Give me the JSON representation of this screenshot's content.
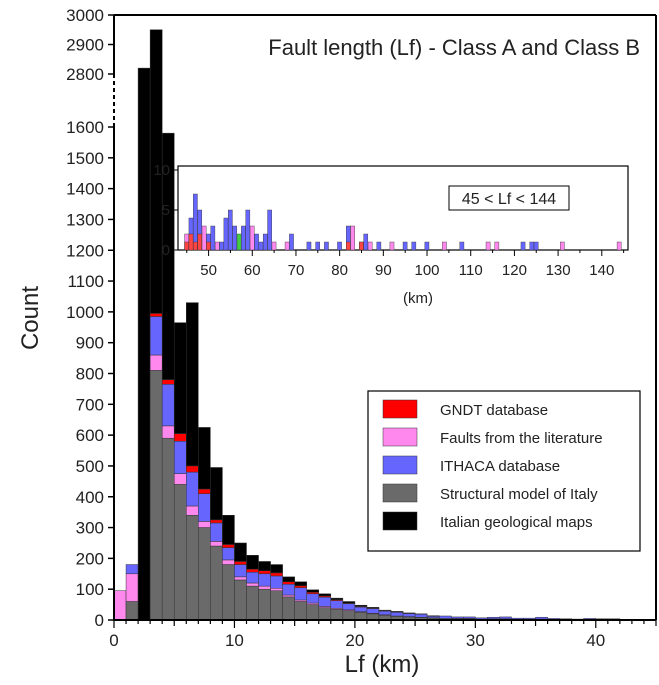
{
  "chart_data": [
    {
      "type": "bar",
      "title": "Fault length (Lf) - Class A and Class B",
      "xlabel": "Lf (km)",
      "ylabel": "Count",
      "bin_width_km": 1,
      "xlim": [
        0,
        45
      ],
      "x_ticks": [
        0,
        10,
        20,
        30,
        40
      ],
      "y_ticks_lower": [
        0,
        100,
        200,
        300,
        400,
        500,
        600,
        700,
        800,
        900,
        1000,
        1100,
        1200,
        1300,
        1400,
        1500,
        1600
      ],
      "y_ticks_upper": [
        2800,
        2900,
        3000
      ],
      "y_axis_break": [
        1650,
        2750
      ],
      "stacked": true,
      "legend_position": "lower-right, inside plot area",
      "series": [
        {
          "name": "Structural model of Italy",
          "color": "#6a6a6a",
          "values": [
            0,
            60,
            0,
            810,
            590,
            440,
            340,
            300,
            240,
            180,
            130,
            110,
            100,
            95,
            75,
            60,
            50,
            40,
            35,
            30,
            25,
            20,
            15,
            12,
            10,
            8,
            6,
            5,
            4,
            4,
            3,
            3,
            3,
            2,
            2,
            2,
            1,
            1,
            1,
            1,
            1,
            1,
            0,
            0,
            0
          ]
        },
        {
          "name": "Faults from the literature",
          "color": "#ff88ee",
          "values": [
            95,
            90,
            0,
            50,
            40,
            35,
            30,
            20,
            15,
            15,
            10,
            10,
            10,
            8,
            6,
            5,
            5,
            4,
            3,
            3,
            2,
            2,
            2,
            1,
            1,
            1,
            1,
            0,
            1,
            1,
            0,
            1,
            1,
            0,
            0,
            1,
            0,
            0,
            0,
            1,
            0,
            0,
            0,
            0,
            0
          ]
        },
        {
          "name": "ITHACA database",
          "color": "#6666ff",
          "values": [
            0,
            30,
            0,
            125,
            135,
            105,
            110,
            90,
            60,
            40,
            40,
            35,
            40,
            40,
            35,
            40,
            30,
            30,
            25,
            20,
            15,
            15,
            12,
            12,
            10,
            10,
            5,
            8,
            5,
            5,
            4,
            5,
            6,
            4,
            4,
            6,
            4,
            3,
            2,
            3,
            3,
            3,
            0,
            0,
            0
          ]
        },
        {
          "name": "GNDT database",
          "color": "#ff0000",
          "values": [
            0,
            0,
            0,
            10,
            15,
            25,
            20,
            15,
            10,
            10,
            10,
            10,
            10,
            10,
            8,
            6,
            5,
            4,
            3,
            2,
            2,
            1,
            1,
            1,
            1,
            0,
            1,
            0,
            0,
            0,
            0,
            0,
            0,
            0,
            0,
            0,
            0,
            0,
            0,
            0,
            0,
            0,
            0,
            0,
            0
          ]
        },
        {
          "name": "Italian geological maps",
          "color": "#000000",
          "values": [
            0,
            0,
            2820,
            1955,
            800,
            360,
            530,
            200,
            170,
            95,
            60,
            45,
            30,
            27,
            16,
            13,
            8,
            7,
            5,
            5,
            4,
            3,
            2,
            2,
            1,
            1,
            1,
            0,
            0,
            0,
            0,
            0,
            0,
            0,
            0,
            0,
            0,
            0,
            0,
            0,
            0,
            0,
            0,
            0,
            0
          ]
        }
      ]
    },
    {
      "type": "bar",
      "title": "",
      "annotation": "45 < Lf < 144",
      "xlabel": "(km)",
      "xlim": [
        43,
        146
      ],
      "ylim": [
        0,
        10
      ],
      "x_ticks": [
        50,
        60,
        70,
        80,
        90,
        100,
        110,
        120,
        130,
        140
      ],
      "y_ticks": [
        0,
        5,
        10
      ],
      "bars": [
        {
          "x": 45,
          "total": 2,
          "color": "#ff88ee"
        },
        {
          "x": 46,
          "total": 4,
          "color": "#6666ff"
        },
        {
          "x": 47,
          "total": 7,
          "color": "#6666ff"
        },
        {
          "x": 48,
          "total": 5,
          "color": "#6666ff"
        },
        {
          "x": 49,
          "total": 3,
          "color": "#ff88ee"
        },
        {
          "x": 50,
          "total": 2,
          "color": "#6666ff"
        },
        {
          "x": 51,
          "total": 3,
          "color": "#6666ff"
        },
        {
          "x": 52,
          "total": 1,
          "color": "#ff88ee"
        },
        {
          "x": 53,
          "total": 1,
          "color": "#6666ff"
        },
        {
          "x": 54,
          "total": 4,
          "color": "#6666ff"
        },
        {
          "x": 55,
          "total": 5,
          "color": "#6666ff"
        },
        {
          "x": 56,
          "total": 3,
          "color": "#6666ff"
        },
        {
          "x": 57,
          "total": 2,
          "color": "#44cc44"
        },
        {
          "x": 58,
          "total": 3,
          "color": "#6666ff"
        },
        {
          "x": 59,
          "total": 5,
          "color": "#6666ff"
        },
        {
          "x": 60,
          "total": 3,
          "color": "#ff88ee"
        },
        {
          "x": 61,
          "total": 2,
          "color": "#6666ff"
        },
        {
          "x": 62,
          "total": 1,
          "color": "#6666ff"
        },
        {
          "x": 63,
          "total": 2,
          "color": "#6666ff"
        },
        {
          "x": 64,
          "total": 5,
          "color": "#6666ff"
        },
        {
          "x": 65,
          "total": 1,
          "color": "#ff88ee"
        },
        {
          "x": 68,
          "total": 1,
          "color": "#ff88ee"
        },
        {
          "x": 69,
          "total": 2,
          "color": "#6666ff"
        },
        {
          "x": 73,
          "total": 1,
          "color": "#6666ff"
        },
        {
          "x": 75,
          "total": 1,
          "color": "#6666ff"
        },
        {
          "x": 77,
          "total": 1,
          "color": "#6666ff"
        },
        {
          "x": 80,
          "total": 1,
          "color": "#6666ff"
        },
        {
          "x": 82,
          "total": 3,
          "color": "#6666ff"
        },
        {
          "x": 83,
          "total": 3,
          "color": "#ff88ee"
        },
        {
          "x": 85,
          "total": 1,
          "color": "#ff88ee"
        },
        {
          "x": 86,
          "total": 2,
          "color": "#6666ff"
        },
        {
          "x": 87,
          "total": 1,
          "color": "#ff88ee"
        },
        {
          "x": 89,
          "total": 1,
          "color": "#6666ff"
        },
        {
          "x": 92,
          "total": 1,
          "color": "#ff88ee"
        },
        {
          "x": 95,
          "total": 1,
          "color": "#6666ff"
        },
        {
          "x": 97,
          "total": 1,
          "color": "#6666ff"
        },
        {
          "x": 100,
          "total": 1,
          "color": "#6666ff"
        },
        {
          "x": 104,
          "total": 1,
          "color": "#ff88ee"
        },
        {
          "x": 108,
          "total": 1,
          "color": "#6666ff"
        },
        {
          "x": 114,
          "total": 1,
          "color": "#ff88ee"
        },
        {
          "x": 116,
          "total": 1,
          "color": "#ff88ee"
        },
        {
          "x": 122,
          "total": 1,
          "color": "#6666ff"
        },
        {
          "x": 124,
          "total": 1,
          "color": "#6666ff"
        },
        {
          "x": 125,
          "total": 1,
          "color": "#6666ff"
        },
        {
          "x": 131,
          "total": 1,
          "color": "#ff88ee"
        },
        {
          "x": 144,
          "total": 1,
          "color": "#ff88ee"
        }
      ],
      "gndt_bases": [
        {
          "x": 45,
          "value": 1
        },
        {
          "x": 46,
          "value": 2
        },
        {
          "x": 47,
          "value": 1
        },
        {
          "x": 48,
          "value": 2
        },
        {
          "x": 50,
          "value": 1
        },
        {
          "x": 82,
          "value": 1
        },
        {
          "x": 85,
          "value": 1
        }
      ]
    }
  ]
}
